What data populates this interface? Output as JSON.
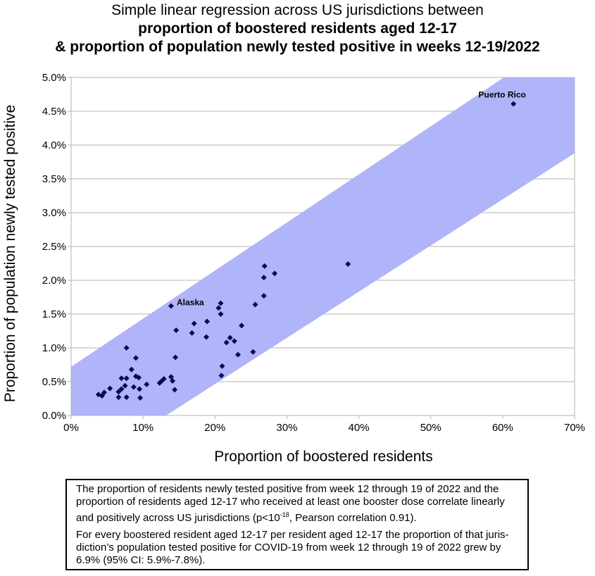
{
  "title": {
    "line1": "Simple linear regression across US jurisdictions between",
    "line2": "proportion of boostered residents aged 12-17",
    "line3": "& proportion of population newly tested positive in weeks 12-19/2022"
  },
  "colors": {
    "band": "#b0b4f8",
    "points": "#0a0a50",
    "grid": "#b3b3b3",
    "axis": "#b3b3b3"
  },
  "note": {
    "p1a": "The proportion of residents newly tested positive from week 12 through 19 of 2022 and the proportion of residents aged 12-17 who received at least one booster dose correlate linearly and positively across US jurisdictions (p<10",
    "p1sup": "-18",
    "p1b": ", Pearson correlation 0.91).",
    "p2": "For every boostered resident aged 12-17 per resident aged 12-17 the proportion of that juris­diction’s population tested positive for COVID-19 from week 12 through 19 of 2022 grew by 6.9% (95% CI: 5.9%-7.8%)."
  },
  "chart_data": {
    "type": "scatter",
    "xlabel": "Proportion of boostered residents",
    "ylabel": "Proportion of population newly tested positive",
    "xlim": [
      0,
      70
    ],
    "ylim": [
      0,
      5
    ],
    "xticks": [
      "0%",
      "10%",
      "20%",
      "30%",
      "40%",
      "50%",
      "60%",
      "70%"
    ],
    "yticks": [
      "0.0%",
      "0.5%",
      "1.0%",
      "1.5%",
      "2.0%",
      "2.5%",
      "3.0%",
      "3.5%",
      "4.0%",
      "4.5%",
      "5.0%"
    ],
    "grid": "horizontal",
    "band": {
      "upper": [
        [
          0,
          0.72
        ],
        [
          70,
          5.7
        ]
      ],
      "lower": [
        [
          13.2,
          0
        ],
        [
          70,
          3.88
        ]
      ]
    },
    "annotations": [
      {
        "text": "Puerto Rico",
        "x": 61.5,
        "y": 4.61
      },
      {
        "text": "Alaska",
        "x": 13.9,
        "y": 1.62
      }
    ],
    "points": [
      [
        61.5,
        4.61
      ],
      [
        38.5,
        2.24
      ],
      [
        28.3,
        2.1
      ],
      [
        26.9,
        2.21
      ],
      [
        26.8,
        2.04
      ],
      [
        26.8,
        1.77
      ],
      [
        25.6,
        1.64
      ],
      [
        25.3,
        0.94
      ],
      [
        23.7,
        1.33
      ],
      [
        23.2,
        0.9
      ],
      [
        22.7,
        1.1
      ],
      [
        22.1,
        1.15
      ],
      [
        21.6,
        1.08
      ],
      [
        21.0,
        0.73
      ],
      [
        20.9,
        0.59
      ],
      [
        20.8,
        1.66
      ],
      [
        20.8,
        1.5
      ],
      [
        20.5,
        1.59
      ],
      [
        18.9,
        1.39
      ],
      [
        18.8,
        1.16
      ],
      [
        17.1,
        1.36
      ],
      [
        16.8,
        1.22
      ],
      [
        14.6,
        1.26
      ],
      [
        14.5,
        0.86
      ],
      [
        14.4,
        0.38
      ],
      [
        14.1,
        0.51
      ],
      [
        13.9,
        1.62
      ],
      [
        13.9,
        0.57
      ],
      [
        12.9,
        0.54
      ],
      [
        12.5,
        0.5
      ],
      [
        12.3,
        0.48
      ],
      [
        10.5,
        0.46
      ],
      [
        9.6,
        0.26
      ],
      [
        9.5,
        0.39
      ],
      [
        9.4,
        0.56
      ],
      [
        9.0,
        0.58
      ],
      [
        9.0,
        0.85
      ],
      [
        8.7,
        0.42
      ],
      [
        8.4,
        0.68
      ],
      [
        7.7,
        1.0
      ],
      [
        7.7,
        0.55
      ],
      [
        7.7,
        0.27
      ],
      [
        7.5,
        0.44
      ],
      [
        7.0,
        0.55
      ],
      [
        7.0,
        0.39
      ],
      [
        6.6,
        0.35
      ],
      [
        6.6,
        0.27
      ],
      [
        5.4,
        0.4
      ],
      [
        4.6,
        0.34
      ],
      [
        4.3,
        0.29
      ],
      [
        3.8,
        0.31
      ]
    ]
  }
}
